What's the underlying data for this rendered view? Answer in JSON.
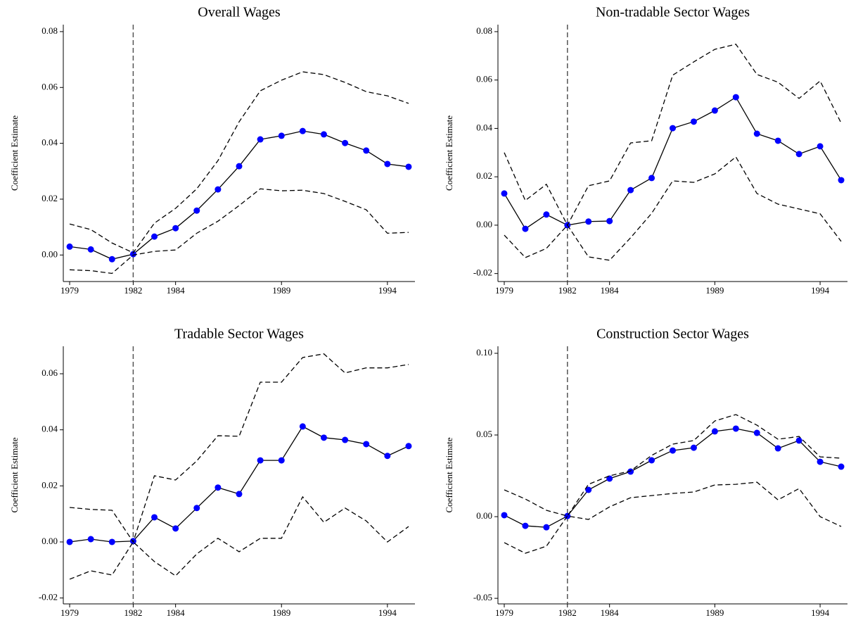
{
  "chart_data": [
    {
      "type": "line",
      "title": "Overall Wages",
      "ylabel": "Coefficient Estimate",
      "x": [
        1979,
        1980,
        1981,
        1982,
        1983,
        1984,
        1985,
        1986,
        1987,
        1988,
        1989,
        1990,
        1991,
        1992,
        1993,
        1994,
        1995
      ],
      "xlim": [
        1978.7,
        1995.3
      ],
      "xticks": [
        1979,
        1982,
        1984,
        1989,
        1994
      ],
      "ylim": [
        -0.0095,
        0.0825
      ],
      "yticks": [
        {
          "value": 0,
          "label": "0.00"
        },
        {
          "value": 0.02,
          "label": "0.02"
        },
        {
          "value": 0.04,
          "label": "0.04"
        },
        {
          "value": 0.06,
          "label": "0.06"
        },
        {
          "value": 0.08,
          "label": "0.08"
        }
      ],
      "vline": 1982,
      "series": [
        {
          "color": "#000000",
          "marker_color": "#0000ff",
          "values": [
            0.003,
            0.002,
            -0.0015,
            0.0003,
            0.0066,
            0.0096,
            0.0159,
            0.0235,
            0.0318,
            0.0414,
            0.0427,
            0.0444,
            0.0432,
            0.0401,
            0.0374,
            0.0326,
            0.0316
          ]
        },
        {
          "color": "#000000",
          "dashed": true,
          "values": [
            0.0111,
            0.0091,
            0.0043,
            0.0008,
            0.0114,
            0.0167,
            0.0237,
            0.0338,
            0.0477,
            0.0588,
            0.0626,
            0.0656,
            0.0646,
            0.0618,
            0.0585,
            0.057,
            0.0543
          ]
        },
        {
          "color": "#000000",
          "dashed": true,
          "values": [
            -0.0053,
            -0.0056,
            -0.0066,
            0.0,
            0.0013,
            0.0018,
            0.0078,
            0.0121,
            0.0177,
            0.0237,
            0.023,
            0.0232,
            0.022,
            0.0192,
            0.0162,
            0.0078,
            0.0081
          ]
        }
      ]
    },
    {
      "type": "line",
      "title": "Non-tradable Sector Wages",
      "ylabel": "Coefficient Estimate",
      "x": [
        1979,
        1980,
        1981,
        1982,
        1983,
        1984,
        1985,
        1986,
        1987,
        1988,
        1989,
        1990,
        1991,
        1992,
        1993,
        1994,
        1995
      ],
      "xlim": [
        1978.7,
        1995.3
      ],
      "xticks": [
        1979,
        1982,
        1984,
        1989,
        1994
      ],
      "ylim": [
        -0.0233,
        0.0829
      ],
      "yticks": [
        {
          "value": -0.02,
          "label": "-0.02"
        },
        {
          "value": 0,
          "label": "0.00"
        },
        {
          "value": 0.02,
          "label": "0.02"
        },
        {
          "value": 0.04,
          "label": "0.04"
        },
        {
          "value": 0.06,
          "label": "0.06"
        },
        {
          "value": 0.08,
          "label": "0.08"
        }
      ],
      "vline": 1982,
      "series": [
        {
          "color": "#000000",
          "marker_color": "#0000ff",
          "values": [
            0.0131,
            -0.0015,
            0.0044,
            0,
            0.0015,
            0.0017,
            0.0145,
            0.0195,
            0.0401,
            0.0428,
            0.0474,
            0.0529,
            0.0378,
            0.0349,
            0.0294,
            0.0326,
            0.0186
          ]
        },
        {
          "color": "#000000",
          "dashed": true,
          "values": [
            0.03,
            0.0102,
            0.0169,
            0,
            0.0163,
            0.0183,
            0.034,
            0.0349,
            0.062,
            0.0675,
            0.0727,
            0.0748,
            0.0623,
            0.0591,
            0.0524,
            0.0596,
            0.0422
          ]
        },
        {
          "color": "#000000",
          "dashed": true,
          "values": [
            -0.0041,
            -0.0134,
            -0.0096,
            0,
            -0.0131,
            -0.0145,
            -0.0052,
            0.0049,
            0.0183,
            0.0177,
            0.0212,
            0.0282,
            0.0131,
            0.0087,
            0.0067,
            0.0047,
            -0.0067
          ]
        }
      ]
    },
    {
      "type": "line",
      "title": "Tradable Sector Wages",
      "ylabel": "Coefficient Estimate",
      "x": [
        1979,
        1980,
        1981,
        1982,
        1983,
        1984,
        1985,
        1986,
        1987,
        1988,
        1989,
        1990,
        1991,
        1992,
        1993,
        1994,
        1995
      ],
      "xlim": [
        1978.7,
        1995.3
      ],
      "xticks": [
        1979,
        1982,
        1984,
        1989,
        1994
      ],
      "ylim": [
        -0.0221,
        0.0698
      ],
      "yticks": [
        {
          "value": -0.02,
          "label": "-0.02"
        },
        {
          "value": 0,
          "label": "0.00"
        },
        {
          "value": 0.02,
          "label": "0.02"
        },
        {
          "value": 0.04,
          "label": "0.04"
        },
        {
          "value": 0.06,
          "label": "0.06"
        }
      ],
      "vline": 1982,
      "series": [
        {
          "color": "#000000",
          "marker_color": "#0000ff",
          "values": [
            0,
            0.001,
            0,
            0.0003,
            0.0088,
            0.0048,
            0.0121,
            0.0194,
            0.0171,
            0.0291,
            0.0291,
            0.0412,
            0.0372,
            0.0364,
            0.0349,
            0.0307,
            0.0342
          ]
        },
        {
          "color": "#000000",
          "dashed": true,
          "values": [
            0.0123,
            0.0116,
            0.0113,
            0,
            0.0236,
            0.0221,
            0.0289,
            0.0379,
            0.0377,
            0.057,
            0.057,
            0.0658,
            0.0671,
            0.0603,
            0.0621,
            0.0621,
            0.0633
          ]
        },
        {
          "color": "#000000",
          "dashed": true,
          "values": [
            -0.0133,
            -0.0103,
            -0.0118,
            0,
            -0.007,
            -0.0121,
            -0.0043,
            0.0013,
            -0.0035,
            0.0013,
            0.0013,
            0.0161,
            0.007,
            0.0121,
            0.0075,
            0,
            0.0055
          ]
        }
      ]
    },
    {
      "type": "line",
      "title": "Construction Sector Wages",
      "ylabel": "Coefficient Estimate",
      "x": [
        1979,
        1980,
        1981,
        1982,
        1983,
        1984,
        1985,
        1986,
        1987,
        1988,
        1989,
        1990,
        1991,
        1992,
        1993,
        1994,
        1995
      ],
      "xlim": [
        1978.7,
        1995.3
      ],
      "xticks": [
        1979,
        1982,
        1984,
        1989,
        1994
      ],
      "ylim": [
        -0.0534,
        0.1043
      ],
      "yticks": [
        {
          "value": -0.05,
          "label": "-0.05"
        },
        {
          "value": 0,
          "label": "0.00"
        },
        {
          "value": 0.05,
          "label": "0.05"
        },
        {
          "value": 0.1,
          "label": "0.10"
        }
      ],
      "vline": 1982,
      "series": [
        {
          "color": "#000000",
          "marker_color": "#0000ff",
          "values": [
            0.0009,
            -0.0056,
            -0.0065,
            0.0004,
            0.0164,
            0.0233,
            0.0276,
            0.0345,
            0.0405,
            0.0422,
            0.0522,
            0.0539,
            0.0513,
            0.0418,
            0.0466,
            0.0336,
            0.0306
          ]
        },
        {
          "color": "#000000",
          "dashed": true,
          "values": [
            0.0164,
            0.0108,
            0.0039,
            0.0004,
            0.0198,
            0.025,
            0.028,
            0.0375,
            0.0444,
            0.0466,
            0.0586,
            0.0625,
            0.056,
            0.0474,
            0.0491,
            0.0366,
            0.0358
          ]
        },
        {
          "color": "#000000",
          "dashed": true,
          "values": [
            -0.0159,
            -0.0224,
            -0.0181,
            0.0004,
            -0.0017,
            0.006,
            0.0116,
            0.0129,
            0.0142,
            0.0151,
            0.0194,
            0.0198,
            0.0211,
            0.0103,
            0.0172,
            0,
            -0.006
          ]
        }
      ]
    }
  ]
}
